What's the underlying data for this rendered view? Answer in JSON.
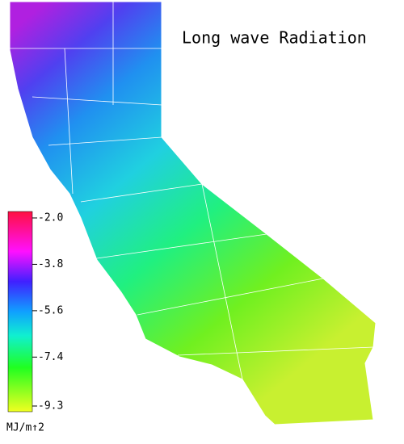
{
  "title": "Long wave Radiation",
  "colorbar": {
    "range": [
      -9.52,
      -1.75
    ],
    "ticks": [
      {
        "value": -2.0,
        "label": "-2.0"
      },
      -3.8,
      -5.6,
      -7.4,
      -9.3
    ],
    "unit": "MJ/m↑2"
  }
}
